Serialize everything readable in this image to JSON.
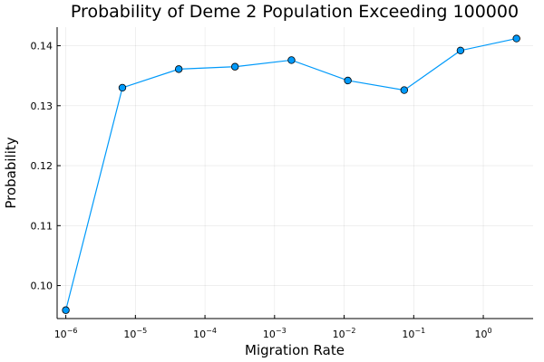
{
  "chart_data": {
    "type": "line",
    "title": "Probability of Deme 2 Population Exceeding 100000",
    "xlabel": "Migration Rate",
    "ylabel": "Probability",
    "xscale": "log10",
    "xlim": [
      7.5e-07,
      5.2
    ],
    "ylim": [
      0.0945,
      0.1431
    ],
    "grid": true,
    "legend": "none",
    "x_ticks": [
      {
        "base": "10",
        "exp": "−6",
        "value": 1e-06
      },
      {
        "base": "10",
        "exp": "−5",
        "value": 1e-05
      },
      {
        "base": "10",
        "exp": "−4",
        "value": 0.0001
      },
      {
        "base": "10",
        "exp": "−3",
        "value": 0.001
      },
      {
        "base": "10",
        "exp": "−2",
        "value": 0.01
      },
      {
        "base": "10",
        "exp": "−1",
        "value": 0.1
      },
      {
        "base": "10",
        "exp": "0",
        "value": 1
      }
    ],
    "y_ticks": [
      {
        "label": "0.10",
        "value": 0.1
      },
      {
        "label": "0.11",
        "value": 0.11
      },
      {
        "label": "0.12",
        "value": 0.12
      },
      {
        "label": "0.13",
        "value": 0.13
      },
      {
        "label": "0.14",
        "value": 0.14
      }
    ],
    "series": [
      {
        "color": "#009AFA",
        "marker": "circle",
        "x": [
          1e-06,
          6.5e-06,
          4.2e-05,
          0.00027,
          0.00175,
          0.0113,
          0.073,
          0.47,
          3.0
        ],
        "y": [
          0.0959,
          0.133,
          0.1361,
          0.1365,
          0.1376,
          0.1342,
          0.1326,
          0.1392,
          0.1412
        ]
      }
    ]
  }
}
